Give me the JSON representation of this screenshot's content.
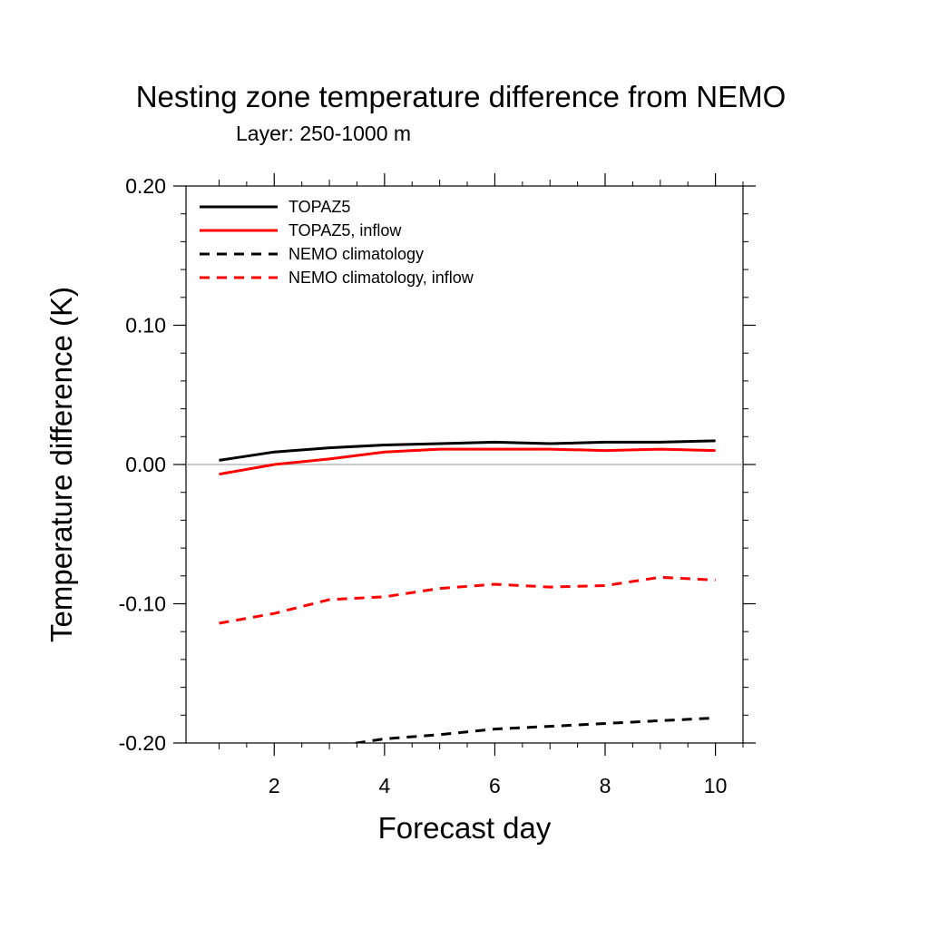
{
  "chart_data": {
    "type": "line",
    "title": "Nesting zone temperature difference from NEMO",
    "subtitle": "Layer: 250-1000 m",
    "xlabel": "Forecast day",
    "ylabel": "Temperature difference (K)",
    "xlim": [
      0.4,
      10.5
    ],
    "ylim": [
      -0.2,
      0.2
    ],
    "xticks": [
      2,
      4,
      6,
      8,
      10
    ],
    "xtick_labels": [
      "2",
      "4",
      "6",
      "8",
      "10"
    ],
    "yticks": [
      -0.2,
      -0.1,
      0.0,
      0.1,
      0.2
    ],
    "ytick_labels": [
      "-0.20",
      "-0.10",
      "0.00",
      "0.10",
      "0.20"
    ],
    "zero_line": true,
    "grid": false,
    "legend_position": "top-left",
    "series": [
      {
        "name": "TOPAZ5",
        "color": "#000000",
        "dash": "solid",
        "x": [
          1,
          2,
          3,
          4,
          5,
          6,
          7,
          8,
          9,
          10
        ],
        "y": [
          0.003,
          0.009,
          0.012,
          0.014,
          0.015,
          0.016,
          0.015,
          0.016,
          0.016,
          0.017
        ]
      },
      {
        "name": "TOPAZ5, inflow",
        "color": "#ff0000",
        "dash": "solid",
        "x": [
          1,
          2,
          3,
          4,
          5,
          6,
          7,
          8,
          9,
          10
        ],
        "y": [
          -0.007,
          0.0,
          0.004,
          0.009,
          0.011,
          0.011,
          0.011,
          0.01,
          0.011,
          0.01
        ]
      },
      {
        "name": "NEMO climatology",
        "color": "#000000",
        "dash": "dashed",
        "x": [
          1,
          2,
          3,
          4,
          5,
          6,
          7,
          8,
          9,
          10
        ],
        "y": [
          -0.215,
          -0.209,
          -0.203,
          -0.197,
          -0.194,
          -0.19,
          -0.188,
          -0.186,
          -0.184,
          -0.182
        ]
      },
      {
        "name": "NEMO climatology, inflow",
        "color": "#ff0000",
        "dash": "dashed",
        "x": [
          1,
          2,
          3,
          4,
          5,
          6,
          7,
          8,
          9,
          10
        ],
        "y": [
          -0.114,
          -0.107,
          -0.097,
          -0.095,
          -0.089,
          -0.086,
          -0.088,
          -0.087,
          -0.081,
          -0.083
        ]
      }
    ]
  }
}
